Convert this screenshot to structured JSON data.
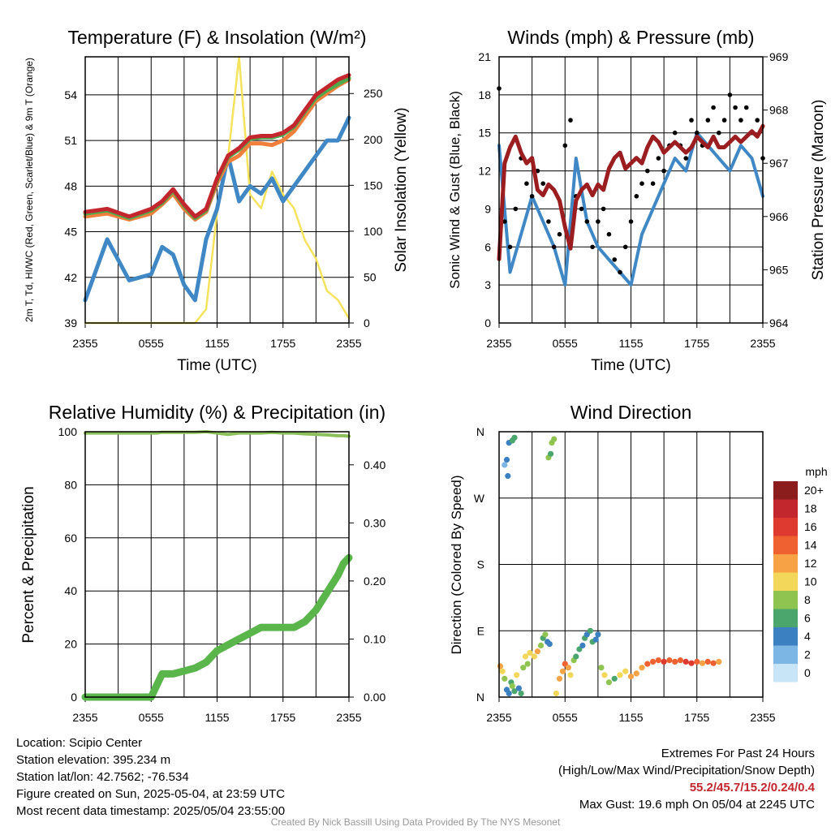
{
  "colors": {
    "red": "#c4262e",
    "green": "#4daa4d",
    "orange": "#f07f3c",
    "blue": "#3f88c5",
    "yellow": "#f5e35d",
    "black": "#000000",
    "maroon": "#9b1d20",
    "rh": "#8cc05a",
    "precip": "#5ab54b"
  },
  "chart_data": [
    {
      "type": "line",
      "title": "Temperature (F) & Insolation (W/m²)",
      "xlabel": "Time (UTC)",
      "ylabel": "2m T, Td, HI/WC (Red, Green, Scarlet/Blue) & 9m T (Orange)",
      "y2label": "Solar Insolation (Yellow)",
      "x_ticks": [
        "2355",
        "0555",
        "1155",
        "1755",
        "2355"
      ],
      "ylim": [
        39,
        56.5
      ],
      "y_ticks": [
        39,
        42,
        45,
        48,
        51,
        54
      ],
      "y2lim": [
        0,
        290
      ],
      "y2_ticks": [
        0,
        50,
        100,
        150,
        200,
        250
      ],
      "x_hours": [
        0,
        2,
        4,
        6,
        7,
        8,
        9,
        10,
        11,
        12,
        13,
        14,
        15,
        16,
        17,
        18,
        19,
        20,
        21,
        22,
        23,
        24
      ],
      "series": [
        {
          "color": "red",
          "axis": "y1",
          "values": [
            46.3,
            46.5,
            46.0,
            46.5,
            47.0,
            47.8,
            46.8,
            46.0,
            46.5,
            48.5,
            50.0,
            50.5,
            51.2,
            51.3,
            51.3,
            51.5,
            52.0,
            53.0,
            54.0,
            54.5,
            55.0,
            55.3
          ]
        },
        {
          "color": "orange",
          "axis": "y1",
          "values": [
            46.0,
            46.2,
            45.8,
            46.2,
            46.8,
            47.5,
            46.5,
            45.8,
            46.3,
            48.2,
            49.6,
            50.0,
            50.8,
            50.8,
            50.7,
            51.0,
            51.6,
            52.6,
            53.6,
            54.1,
            54.6,
            55.0
          ]
        },
        {
          "color": "green",
          "axis": "y1",
          "values": [
            46.2,
            46.4,
            45.9,
            46.4,
            46.9,
            47.7,
            46.7,
            45.9,
            46.4,
            48.4,
            49.9,
            50.4,
            51.1,
            51.2,
            51.2,
            51.4,
            51.9,
            52.9,
            53.8,
            54.3,
            54.7,
            55.1
          ]
        },
        {
          "color": "blue",
          "axis": "y1",
          "values": [
            40.5,
            44.5,
            41.8,
            42.2,
            44.0,
            43.5,
            41.5,
            40.5,
            44.5,
            46.5,
            50.0,
            47.0,
            48.0,
            47.5,
            48.5,
            47.0,
            48.0,
            49.0,
            50.0,
            51.0,
            51.0,
            52.5
          ]
        },
        {
          "color": "yellow",
          "axis": "y2",
          "values": [
            0,
            0,
            0,
            0,
            0,
            0,
            0,
            0,
            15,
            120,
            180,
            290,
            140,
            125,
            165,
            140,
            125,
            90,
            70,
            35,
            25,
            5
          ]
        }
      ]
    },
    {
      "type": "line",
      "title": "Winds (mph) & Pressure (mb)",
      "xlabel": "Time (UTC)",
      "ylabel": "Sonic Wind & Gust (Blue, Black)",
      "y2label": "Station Pressure (Maroon)",
      "x_ticks": [
        "2355",
        "0555",
        "1155",
        "1755",
        "2355"
      ],
      "ylim": [
        0,
        21
      ],
      "y_ticks": [
        0,
        3,
        6,
        9,
        12,
        15,
        18,
        21
      ],
      "y2lim": [
        964,
        969
      ],
      "y2_ticks": [
        964,
        965,
        966,
        967,
        968,
        969
      ],
      "wind": {
        "color": "blue",
        "x_hours": [
          0,
          1,
          2,
          3,
          4,
          5,
          6,
          7,
          8,
          9,
          10,
          11,
          12,
          13,
          14,
          15,
          16,
          17,
          18,
          19,
          20,
          21,
          22,
          23,
          24
        ],
        "values": [
          14,
          4,
          7,
          10,
          8,
          6,
          3,
          13,
          8,
          6,
          5,
          4,
          3,
          7,
          9,
          11,
          13,
          12,
          15,
          14,
          13,
          12,
          14,
          13,
          10
        ]
      },
      "gust": {
        "color": "black",
        "x_hours": [
          0,
          0.5,
          1,
          1.5,
          2,
          2.5,
          3,
          3.5,
          4,
          4.5,
          5,
          5.5,
          6,
          6.5,
          7,
          7.5,
          8,
          8.5,
          9,
          9.5,
          10,
          10.5,
          11,
          11.5,
          12,
          12.5,
          13,
          13.5,
          14,
          14.5,
          15,
          15.5,
          16,
          16.5,
          17,
          17.5,
          18,
          18.5,
          19,
          19.5,
          20,
          20.5,
          21,
          21.5,
          22,
          22.5,
          23,
          23.5,
          24
        ],
        "values": [
          18.5,
          8,
          6,
          9,
          13,
          11,
          10,
          12,
          11,
          8,
          6,
          7,
          14,
          16,
          10,
          9,
          8,
          6,
          8,
          9,
          7,
          5,
          4,
          6,
          8,
          10,
          11,
          12,
          11,
          13,
          12,
          14,
          15,
          14,
          13,
          16,
          15,
          14,
          16,
          17,
          15,
          16,
          18,
          17,
          16,
          17,
          15,
          16,
          13
        ]
      },
      "pressure": {
        "color": "maroon",
        "x_hours": [
          0,
          0.5,
          1,
          1.5,
          2,
          2.5,
          3,
          3.5,
          4,
          4.5,
          5,
          5.5,
          6,
          6.5,
          7,
          7.5,
          8,
          8.5,
          9,
          9.5,
          10,
          10.5,
          11,
          11.5,
          12,
          12.5,
          13,
          13.5,
          14,
          14.5,
          15,
          15.5,
          16,
          16.5,
          17,
          17.5,
          18,
          18.5,
          19,
          19.5,
          20,
          20.5,
          21,
          21.5,
          22,
          22.5,
          23,
          23.5,
          24
        ],
        "values": [
          965.2,
          967.0,
          967.3,
          967.5,
          967.2,
          967.0,
          967.1,
          966.5,
          966.4,
          966.6,
          966.5,
          966.3,
          965.8,
          965.4,
          966.3,
          966.5,
          966.6,
          966.4,
          966.6,
          966.5,
          966.9,
          967.1,
          967.2,
          966.9,
          967.0,
          967.1,
          967.0,
          967.3,
          967.5,
          967.4,
          967.2,
          967.3,
          967.4,
          967.3,
          967.2,
          967.3,
          967.5,
          967.4,
          967.3,
          967.5,
          967.3,
          967.3,
          967.4,
          967.5,
          967.4,
          967.5,
          967.6,
          967.5,
          967.7
        ]
      }
    },
    {
      "type": "line",
      "title": "Relative Humidity (%) & Precipitation (in)",
      "ylabel": "Percent & Precipitation",
      "x_ticks": [
        "2355",
        "0555",
        "1155",
        "1755",
        "2355"
      ],
      "ylim": [
        0,
        100
      ],
      "y_ticks": [
        0,
        20,
        40,
        60,
        80,
        100
      ],
      "y2lim": [
        0,
        0.457
      ],
      "y2_ticks": [
        "0.00",
        "0.10",
        "0.20",
        "0.30",
        "0.40"
      ],
      "x_hours": [
        0,
        6,
        6.5,
        7,
        8,
        9,
        10,
        11,
        12,
        13,
        14,
        15,
        16,
        17,
        18,
        19,
        20,
        21,
        22,
        23,
        23.5,
        24
      ],
      "rh": {
        "color": "rh",
        "values": [
          99.5,
          99.5,
          99.5,
          99.8,
          99.8,
          99.8,
          99.8,
          100,
          99.5,
          99,
          99.5,
          99.5,
          99.5,
          99.8,
          99.5,
          99.5,
          99.2,
          99.0,
          98.8,
          98.5,
          98.5,
          98.3
        ]
      },
      "precip": {
        "color": "precip",
        "values": [
          0,
          0,
          0.02,
          0.04,
          0.04,
          0.045,
          0.05,
          0.06,
          0.08,
          0.09,
          0.1,
          0.11,
          0.12,
          0.12,
          0.12,
          0.12,
          0.13,
          0.15,
          0.18,
          0.21,
          0.23,
          0.24
        ]
      }
    },
    {
      "type": "scatter",
      "title": "Wind Direction",
      "ylabel": "Direction (Colored By Speed)",
      "x_ticks": [
        "2355",
        "0555",
        "1155",
        "1755",
        "2355"
      ],
      "y_ticks": [
        "N",
        "E",
        "S",
        "W",
        "N"
      ],
      "ylim": [
        0,
        360
      ],
      "legend_title": "mph",
      "legend_labels": [
        "20+",
        "18",
        "16",
        "14",
        "12",
        "10",
        "8",
        "6",
        "4",
        "2",
        "0"
      ],
      "legend_colors": [
        "#8c1d1d",
        "#c1272d",
        "#de3a2f",
        "#ef6130",
        "#f7a345",
        "#f3d75a",
        "#90c450",
        "#4ba66e",
        "#3b80c1",
        "#7cb6e4",
        "#c7e5f7"
      ],
      "points": [
        [
          0.1,
          42,
          12
        ],
        [
          0.3,
          35,
          10
        ],
        [
          0.5,
          25,
          8
        ],
        [
          0.7,
          10,
          4
        ],
        [
          0.9,
          5,
          3
        ],
        [
          1.1,
          20,
          6
        ],
        [
          1.2,
          15,
          7
        ],
        [
          1.4,
          8,
          5
        ],
        [
          1.6,
          30,
          9
        ],
        [
          1.8,
          12,
          4
        ],
        [
          2.0,
          5,
          6
        ],
        [
          2.2,
          40,
          8
        ],
        [
          2.4,
          55,
          10
        ],
        [
          2.6,
          45,
          7
        ],
        [
          2.8,
          60,
          9
        ],
        [
          0.5,
          315,
          2
        ],
        [
          0.7,
          322,
          3
        ],
        [
          0.9,
          345,
          4
        ],
        [
          1.2,
          348,
          5
        ],
        [
          1.4,
          352,
          6
        ],
        [
          0.8,
          300,
          4
        ],
        [
          3.2,
          55,
          10
        ],
        [
          3.5,
          62,
          11
        ],
        [
          3.8,
          70,
          8
        ],
        [
          4.0,
          80,
          6
        ],
        [
          4.2,
          85,
          7
        ],
        [
          4.4,
          75,
          4
        ],
        [
          4.6,
          72,
          3
        ],
        [
          4.5,
          325,
          7
        ],
        [
          4.7,
          330,
          6
        ],
        [
          4.8,
          345,
          8
        ],
        [
          5.0,
          350,
          7
        ],
        [
          5.2,
          5,
          9
        ],
        [
          5.5,
          25,
          11
        ],
        [
          5.8,
          35,
          12
        ],
        [
          6.0,
          45,
          14
        ],
        [
          6.3,
          40,
          12
        ],
        [
          6.5,
          30,
          9
        ],
        [
          6.8,
          50,
          8
        ],
        [
          7.0,
          55,
          6
        ],
        [
          7.3,
          65,
          5
        ],
        [
          7.6,
          70,
          4
        ],
        [
          7.8,
          80,
          5
        ],
        [
          8.0,
          85,
          4
        ],
        [
          8.3,
          90,
          6
        ],
        [
          8.5,
          75,
          5
        ],
        [
          8.8,
          78,
          3
        ],
        [
          9.0,
          85,
          4
        ],
        [
          9.3,
          40,
          7
        ],
        [
          9.6,
          30,
          9
        ],
        [
          10.0,
          20,
          8
        ],
        [
          10.5,
          25,
          6
        ],
        [
          11.0,
          30,
          9
        ],
        [
          11.5,
          35,
          10
        ],
        [
          12.0,
          28,
          12
        ],
        [
          12.5,
          32,
          11
        ],
        [
          13.0,
          40,
          12
        ],
        [
          13.5,
          45,
          13
        ],
        [
          14.0,
          48,
          14
        ],
        [
          14.5,
          50,
          14
        ],
        [
          15.0,
          48,
          15
        ],
        [
          15.5,
          50,
          14
        ],
        [
          16.0,
          48,
          13
        ],
        [
          16.5,
          50,
          14
        ],
        [
          17.0,
          48,
          15
        ],
        [
          17.5,
          46,
          16
        ],
        [
          18.0,
          48,
          14
        ],
        [
          18.5,
          46,
          12
        ],
        [
          19.0,
          48,
          13
        ],
        [
          19.5,
          46,
          14
        ],
        [
          20.0,
          48,
          12
        ]
      ]
    }
  ],
  "info": {
    "location": "Location: Scipio Center",
    "elevation": "Station elevation: 395.234 m",
    "latlon": "Station lat/lon: 42.7562; -76.534",
    "created": "Figure created on Sun, 2025-05-04, at 23:59 UTC",
    "recent": "Most recent data timestamp: 2025/05/04 23:55:00"
  },
  "extremes": {
    "title": "Extremes For Past 24 Hours",
    "subtitle": "(High/Low/Max Wind/Precipitation/Snow Depth)",
    "values": "55.2/45.7/15.2/0.24/0.4",
    "gust": "Max Gust: 19.6 mph On 05/04 at 2245 UTC"
  },
  "credit": "Created By Nick Bassill Using Data Provided By The NYS Mesonet"
}
